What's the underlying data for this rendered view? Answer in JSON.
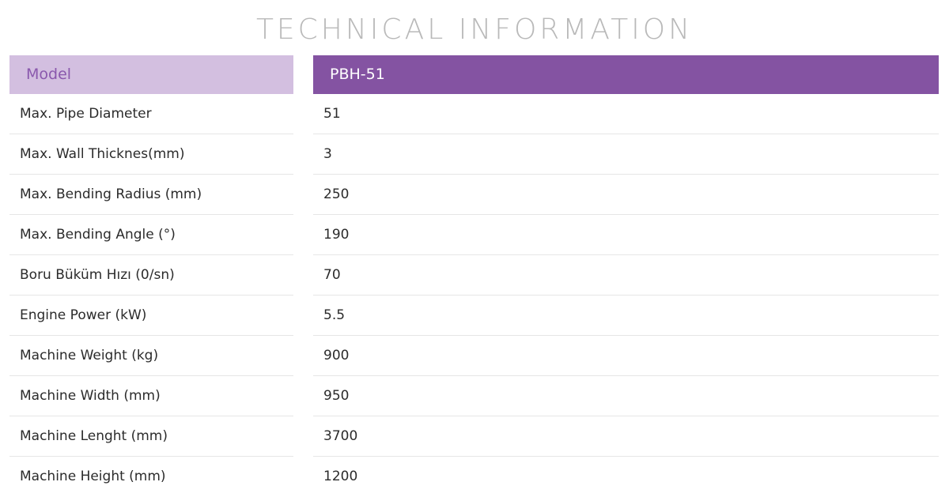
{
  "title": "TECHNICAL INFORMATION",
  "table": {
    "header_label": "Model",
    "header_value": "PBH-51",
    "rows": [
      {
        "label": "Max. Pipe Diameter",
        "value": "51"
      },
      {
        "label": "Max. Wall Thicknes(mm)",
        "value": "3"
      },
      {
        "label": "Max. Bending Radius (mm)",
        "value": "250"
      },
      {
        "label": "Max. Bending Angle (°)",
        "value": "190"
      },
      {
        "label": "Boru Büküm Hızı (0/sn)",
        "value": "70"
      },
      {
        "label": "Engine Power (kW)",
        "value": "5.5"
      },
      {
        "label": "Machine Weight (kg)",
        "value": "900"
      },
      {
        "label": "Machine Width (mm)",
        "value": "950"
      },
      {
        "label": "Machine Lenght (mm)",
        "value": "3700"
      },
      {
        "label": "Machine Height (mm)",
        "value": "1200"
      }
    ]
  },
  "colors": {
    "header_left_bg": "#d3bfe0",
    "header_left_text": "#8a58ad",
    "header_right_bg": "#8453a2",
    "header_right_text": "#ffffff",
    "title_text": "#b9b9b9"
  }
}
